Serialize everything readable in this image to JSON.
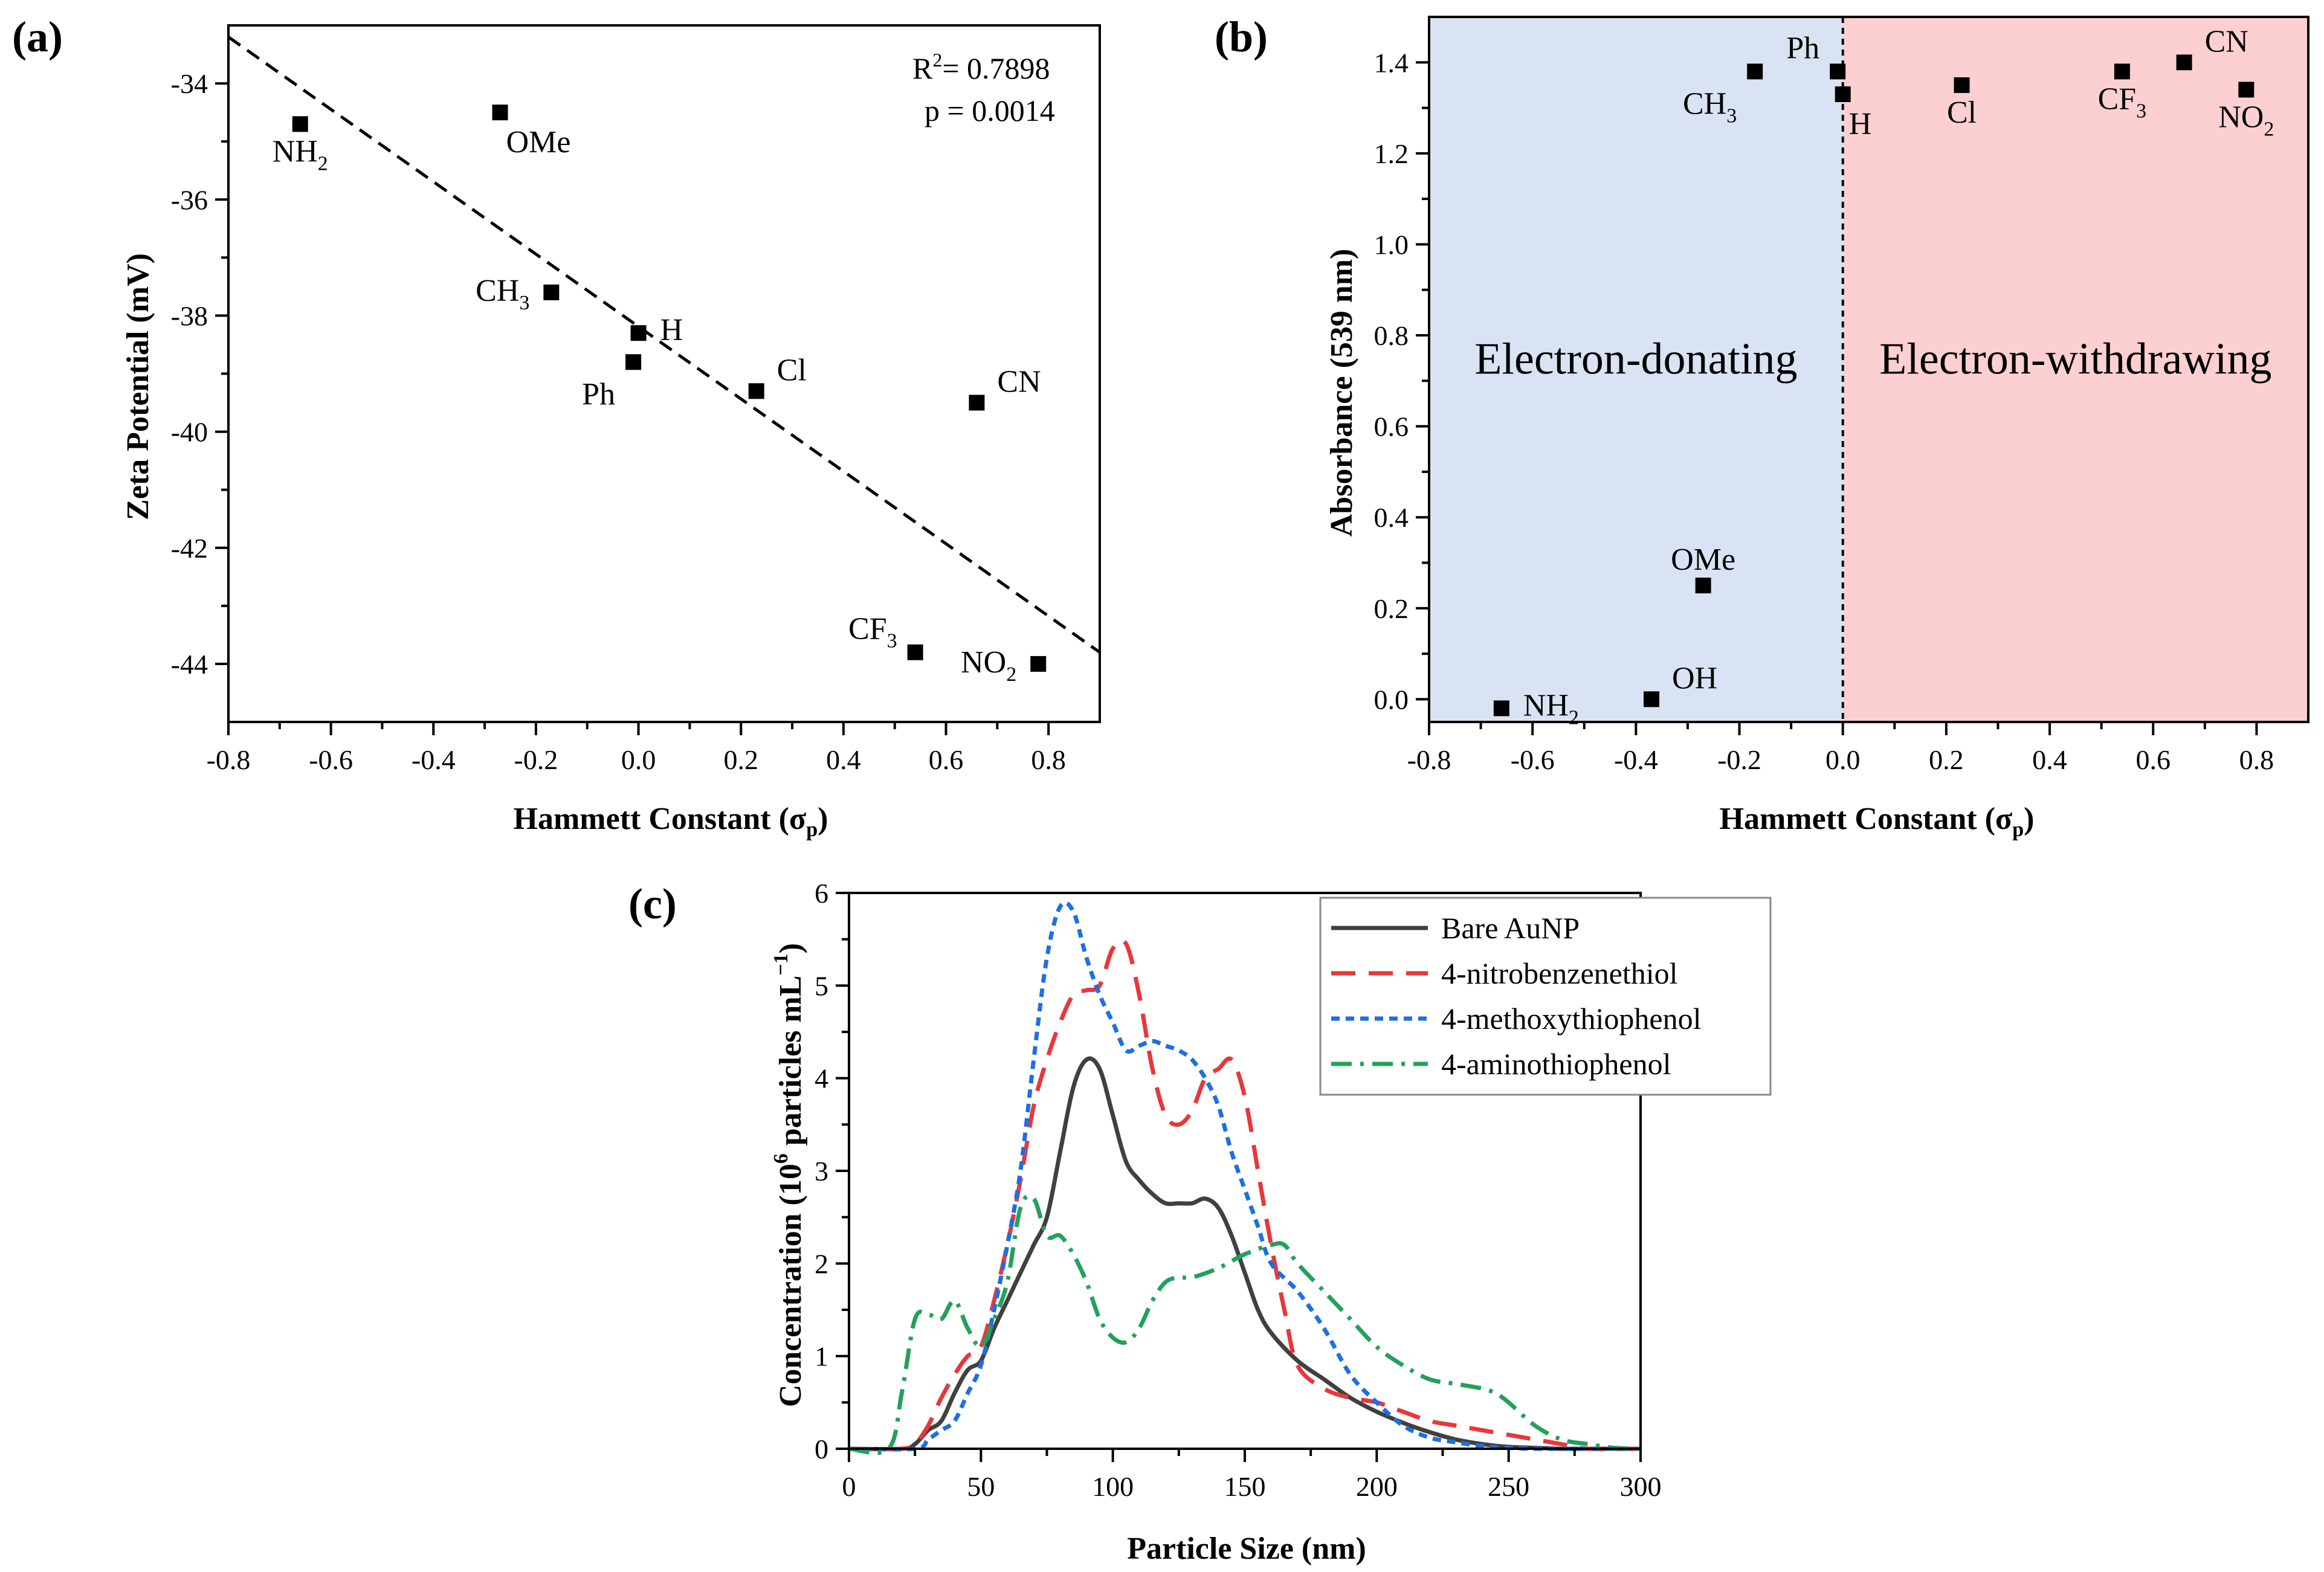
{
  "chart_data": [
    {
      "panel": "(a)",
      "type": "scatter",
      "xlabel": "Hammett Constant (σ",
      "xlabel_sub": "p",
      "xlabel_close": ")",
      "ylabel": "Zeta Potential (mV)",
      "xlim": [
        -0.8,
        0.9
      ],
      "ylim": [
        -45,
        -33
      ],
      "xticks": [
        -0.8,
        -0.6,
        -0.4,
        -0.2,
        0.0,
        0.2,
        0.4,
        0.6,
        0.8
      ],
      "xtick_labels": [
        "-0.8",
        "-0.6",
        "-0.4",
        "-0.2",
        "0.0",
        "0.2",
        "0.4",
        "0.6",
        "0.8"
      ],
      "yticks": [
        -44,
        -42,
        -40,
        -38,
        -36,
        -34
      ],
      "ytick_labels": [
        "-44",
        "-42",
        "-40",
        "-38",
        "-36",
        "-34"
      ],
      "points": [
        {
          "name": "NH",
          "sub": "2",
          "x": -0.66,
          "y": -34.7,
          "pos": "below"
        },
        {
          "name": "OMe",
          "sub": "",
          "x": -0.27,
          "y": -34.5,
          "pos": "below-right"
        },
        {
          "name": "CH",
          "sub": "3",
          "x": -0.17,
          "y": -37.6,
          "pos": "left"
        },
        {
          "name": "H",
          "sub": "",
          "x": 0.0,
          "y": -38.3,
          "pos": "right"
        },
        {
          "name": "Ph",
          "sub": "",
          "x": -0.01,
          "y": -38.8,
          "pos": "below-left"
        },
        {
          "name": "Cl",
          "sub": "",
          "x": 0.23,
          "y": -39.3,
          "pos": "above-right"
        },
        {
          "name": "CN",
          "sub": "",
          "x": 0.66,
          "y": -39.5,
          "pos": "above-right"
        },
        {
          "name": "CF",
          "sub": "3",
          "x": 0.54,
          "y": -43.8,
          "pos": "above-left"
        },
        {
          "name": "NO",
          "sub": "2",
          "x": 0.78,
          "y": -44.0,
          "pos": "left"
        }
      ],
      "fit_line": {
        "style": "dashed",
        "x": [
          -0.8,
          0.9
        ],
        "y": [
          -33.2,
          -43.8
        ]
      },
      "stats": {
        "r2_label": "R",
        "r2_sup": "2",
        "r2_value": "= 0.7898",
        "p_text": "p  = 0.0014"
      }
    },
    {
      "panel": "(b)",
      "type": "scatter",
      "xlabel": "Hammett Constant (σ",
      "xlabel_sub": "p",
      "xlabel_close": ")",
      "ylabel": "Absorbance (539 nm)",
      "xlim": [
        -0.8,
        0.9
      ],
      "ylim": [
        -0.05,
        1.5
      ],
      "xticks": [
        -0.8,
        -0.6,
        -0.4,
        -0.2,
        0.0,
        0.2,
        0.4,
        0.6,
        0.8
      ],
      "xtick_labels": [
        "-0.8",
        "-0.6",
        "-0.4",
        "-0.2",
        "0.0",
        "0.2",
        "0.4",
        "0.6",
        "0.8"
      ],
      "yticks": [
        0.0,
        0.2,
        0.4,
        0.6,
        0.8,
        1.0,
        1.2,
        1.4
      ],
      "ytick_labels": [
        "0.0",
        "0.2",
        "0.4",
        "0.6",
        "0.8",
        "1.0",
        "1.2",
        "1.4"
      ],
      "regions": [
        {
          "label": "Electron-donating",
          "x": [
            -0.8,
            0.0
          ],
          "color": "#dae3f3"
        },
        {
          "label": "Electron-withdrawing",
          "x": [
            0.0,
            0.9
          ],
          "color": "#fcd0d0"
        }
      ],
      "divider_x": 0.0,
      "points": [
        {
          "name": "NH",
          "sub": "2",
          "x": -0.66,
          "y": -0.02,
          "pos": "right"
        },
        {
          "name": "OH",
          "sub": "",
          "x": -0.37,
          "y": 0.0,
          "pos": "above-right"
        },
        {
          "name": "OMe",
          "sub": "",
          "x": -0.27,
          "y": 0.25,
          "pos": "above"
        },
        {
          "name": "CH",
          "sub": "3",
          "x": -0.17,
          "y": 1.38,
          "pos": "below-left"
        },
        {
          "name": "Ph",
          "sub": "",
          "x": -0.01,
          "y": 1.38,
          "pos": "above-left"
        },
        {
          "name": "H",
          "sub": "",
          "x": 0.0,
          "y": 1.33,
          "pos": "below-right"
        },
        {
          "name": "Cl",
          "sub": "",
          "x": 0.23,
          "y": 1.35,
          "pos": "below"
        },
        {
          "name": "CF",
          "sub": "3",
          "x": 0.54,
          "y": 1.38,
          "pos": "below"
        },
        {
          "name": "CN",
          "sub": "",
          "x": 0.66,
          "y": 1.4,
          "pos": "above-right"
        },
        {
          "name": "NO",
          "sub": "2",
          "x": 0.78,
          "y": 1.34,
          "pos": "below"
        }
      ]
    },
    {
      "panel": "(c)",
      "type": "line",
      "xlabel": "Particle Size (nm)",
      "ylabel": "Concentration (10",
      "ylabel_sup": "6",
      "ylabel_mid": " particles mL",
      "ylabel_sup2": "−1",
      "ylabel_close": ")",
      "xlim": [
        0,
        300
      ],
      "ylim": [
        0,
        6
      ],
      "xticks": [
        0,
        50,
        100,
        150,
        200,
        250,
        300
      ],
      "xtick_labels": [
        "0",
        "50",
        "100",
        "150",
        "200",
        "250",
        "300"
      ],
      "yticks": [
        0,
        1,
        2,
        3,
        4,
        5,
        6
      ],
      "ytick_labels": [
        "0",
        "1",
        "2",
        "3",
        "4",
        "5",
        "6"
      ],
      "legend_position": "top-right",
      "series": [
        {
          "name": "Bare AuNP",
          "color": "#404040",
          "dash": "solid",
          "x": [
            0,
            20,
            25,
            30,
            35,
            40,
            45,
            50,
            55,
            60,
            65,
            70,
            75,
            80,
            85,
            90,
            95,
            100,
            105,
            110,
            115,
            120,
            125,
            130,
            135,
            140,
            145,
            150,
            155,
            160,
            170,
            180,
            190,
            200,
            210,
            220,
            230,
            240,
            250,
            260,
            270,
            280,
            290,
            300
          ],
          "y": [
            0,
            0,
            0.05,
            0.2,
            0.3,
            0.6,
            0.85,
            0.95,
            1.3,
            1.6,
            1.9,
            2.2,
            2.5,
            3.2,
            3.9,
            4.2,
            4.1,
            3.6,
            3.1,
            2.9,
            2.75,
            2.65,
            2.65,
            2.65,
            2.7,
            2.6,
            2.3,
            1.9,
            1.5,
            1.25,
            0.95,
            0.75,
            0.55,
            0.4,
            0.28,
            0.18,
            0.1,
            0.05,
            0.02,
            0.01,
            0,
            0,
            0,
            0
          ]
        },
        {
          "name": "4-nitrobenzenethiol",
          "color": "#e8373a",
          "dash": "long",
          "x": [
            0,
            20,
            25,
            30,
            35,
            40,
            45,
            50,
            55,
            60,
            65,
            70,
            75,
            80,
            85,
            90,
            95,
            100,
            105,
            110,
            115,
            120,
            125,
            130,
            135,
            140,
            145,
            150,
            155,
            160,
            165,
            170,
            180,
            190,
            200,
            210,
            220,
            230,
            240,
            250,
            260,
            270,
            280,
            300
          ],
          "y": [
            0,
            0,
            0.05,
            0.25,
            0.55,
            0.8,
            1.0,
            1.1,
            1.6,
            2.2,
            2.9,
            3.7,
            4.2,
            4.6,
            4.9,
            4.95,
            5.0,
            5.4,
            5.45,
            4.9,
            4.1,
            3.6,
            3.5,
            3.65,
            4.0,
            4.1,
            4.2,
            3.8,
            3.0,
            2.2,
            1.5,
            0.9,
            0.65,
            0.55,
            0.5,
            0.4,
            0.3,
            0.25,
            0.2,
            0.15,
            0.1,
            0.05,
            0,
            0
          ]
        },
        {
          "name": "4-methoxythiophenol",
          "color": "#1e6fe0",
          "dash": "short",
          "x": [
            0,
            25,
            30,
            35,
            40,
            45,
            50,
            55,
            60,
            65,
            70,
            75,
            80,
            85,
            90,
            95,
            100,
            105,
            110,
            115,
            120,
            125,
            130,
            135,
            140,
            145,
            150,
            155,
            160,
            170,
            180,
            190,
            200,
            210,
            220,
            230,
            240,
            250,
            260,
            270,
            280,
            300
          ],
          "y": [
            0,
            0,
            0.1,
            0.2,
            0.3,
            0.6,
            0.9,
            1.5,
            2.2,
            3.0,
            4.2,
            5.3,
            5.85,
            5.8,
            5.3,
            4.9,
            4.6,
            4.3,
            4.35,
            4.4,
            4.35,
            4.3,
            4.2,
            4.0,
            3.7,
            3.2,
            2.8,
            2.4,
            2.0,
            1.7,
            1.3,
            0.8,
            0.5,
            0.25,
            0.12,
            0.07,
            0.03,
            0.01,
            0,
            0,
            0,
            0
          ]
        },
        {
          "name": "4-aminothiophenol",
          "color": "#23a15a",
          "dash": "dashdot",
          "x": [
            0,
            15,
            20,
            25,
            30,
            35,
            40,
            45,
            50,
            55,
            60,
            65,
            70,
            75,
            80,
            85,
            90,
            95,
            100,
            105,
            110,
            115,
            120,
            125,
            130,
            140,
            150,
            160,
            165,
            170,
            180,
            190,
            200,
            210,
            220,
            230,
            240,
            245,
            250,
            260,
            270,
            280,
            290,
            300
          ],
          "y": [
            0,
            0,
            0.6,
            1.4,
            1.45,
            1.4,
            1.6,
            1.3,
            1.1,
            1.4,
            1.8,
            2.6,
            2.7,
            2.3,
            2.3,
            2.1,
            1.8,
            1.4,
            1.2,
            1.15,
            1.3,
            1.6,
            1.8,
            1.85,
            1.85,
            1.95,
            2.1,
            2.2,
            2.2,
            2.0,
            1.7,
            1.4,
            1.1,
            0.9,
            0.75,
            0.7,
            0.65,
            0.6,
            0.5,
            0.25,
            0.1,
            0.05,
            0.01,
            0
          ]
        }
      ]
    }
  ]
}
